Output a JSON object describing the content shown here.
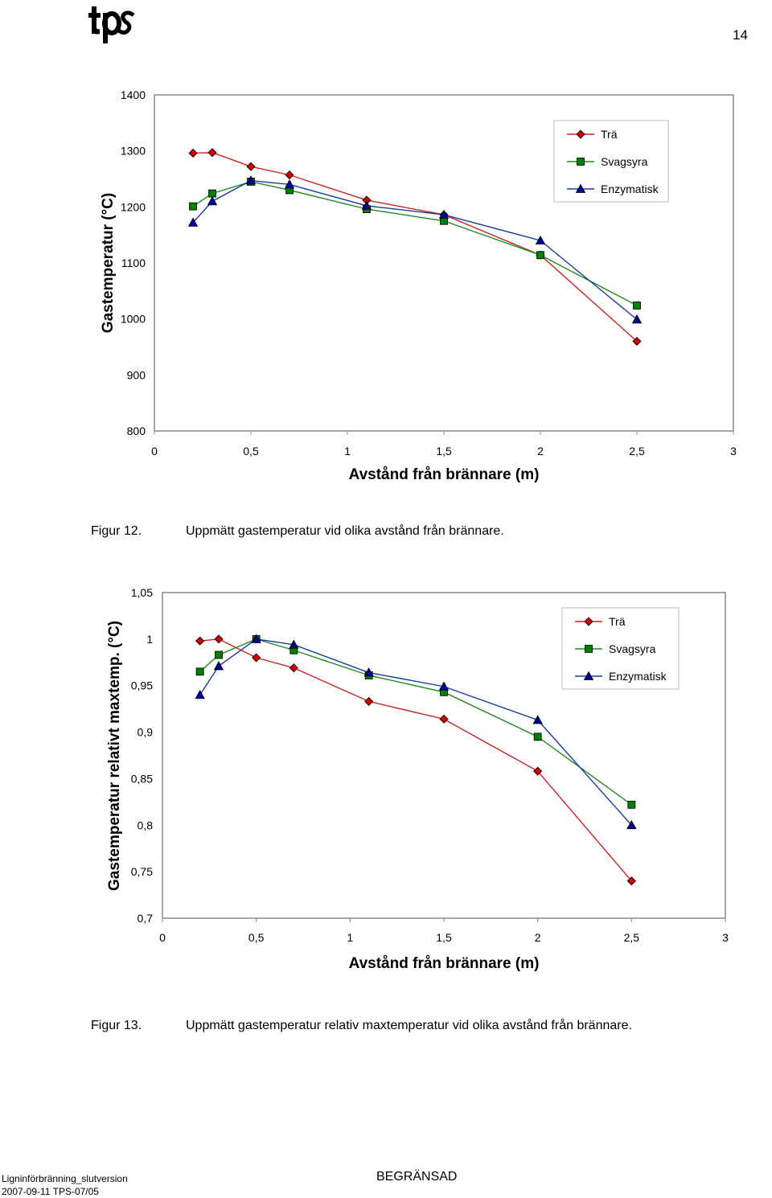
{
  "header": {
    "logo_text": "tps",
    "page_number": "14"
  },
  "figures": [
    {
      "label": "Figur 12.",
      "caption": "Uppmätt gastemperatur vid olika avstånd från brännare."
    },
    {
      "label": "Figur 13.",
      "caption": "Uppmätt gastemperatur relativ maxtemperatur vid olika avstånd från brännare."
    }
  ],
  "footer": {
    "doc_name": "Ligninförbränning_slutversion",
    "doc_ref": "2007-09-11 TPS-07/05",
    "classification": "BEGRÄNSAD"
  },
  "chart_data": [
    {
      "type": "line",
      "xlabel": "Avstånd från brännare (m)",
      "ylabel": "Gastemperatur (°C)",
      "xlim": [
        0,
        3
      ],
      "ylim": [
        800,
        1400
      ],
      "xticks": [
        0,
        0.5,
        1,
        1.5,
        2,
        2.5,
        3
      ],
      "xtick_labels": [
        "0",
        "0,5",
        "1",
        "1,5",
        "2",
        "2,5",
        "3"
      ],
      "yticks": [
        800,
        900,
        1000,
        1100,
        1200,
        1300,
        1400
      ],
      "ytick_labels": [
        "800",
        "900",
        "1000",
        "1100",
        "1200",
        "1300",
        "1400"
      ],
      "grid": false,
      "legend": "top-right",
      "series": [
        {
          "name": "Trä",
          "color": "#cc2222",
          "marker": "diamond",
          "marker_color": "#cc0000",
          "x": [
            0.2,
            0.3,
            0.5,
            0.7,
            1.1,
            1.5,
            2.0,
            2.5
          ],
          "y": [
            1296,
            1297,
            1272,
            1257,
            1212,
            1186,
            1114,
            960
          ]
        },
        {
          "name": "Svagsyra",
          "color": "#228822",
          "marker": "square",
          "marker_color": "#008000",
          "x": [
            0.2,
            0.3,
            0.5,
            0.7,
            1.1,
            1.5,
            2.0,
            2.5
          ],
          "y": [
            1201,
            1224,
            1245,
            1230,
            1196,
            1175,
            1114,
            1024
          ]
        },
        {
          "name": "Enzymatisk",
          "color": "#1a3aa0",
          "marker": "triangle",
          "marker_color": "#000099",
          "x": [
            0.2,
            0.3,
            0.5,
            0.7,
            1.1,
            1.5,
            2.0,
            2.5
          ],
          "y": [
            1172,
            1210,
            1247,
            1240,
            1202,
            1186,
            1140,
            999
          ]
        }
      ]
    },
    {
      "type": "line",
      "xlabel": "Avstånd från brännare (m)",
      "ylabel": "Gastemperatur relativt maxtemp. (°C)",
      "xlim": [
        0,
        3
      ],
      "ylim": [
        0.7,
        1.05
      ],
      "xticks": [
        0,
        0.5,
        1,
        1.5,
        2,
        2.5,
        3
      ],
      "xtick_labels": [
        "0",
        "0,5",
        "1",
        "1,5",
        "2",
        "2,5",
        "3"
      ],
      "yticks": [
        0.7,
        0.75,
        0.8,
        0.85,
        0.9,
        0.95,
        1,
        1.05
      ],
      "ytick_labels": [
        "0,7",
        "0,75",
        "0,8",
        "0,85",
        "0,9",
        "0,95",
        "1",
        "1,05"
      ],
      "grid": false,
      "legend": "top-right",
      "series": [
        {
          "name": "Trä",
          "color": "#cc2222",
          "marker": "diamond",
          "marker_color": "#cc0000",
          "x": [
            0.2,
            0.3,
            0.5,
            0.7,
            1.1,
            1.5,
            2.0,
            2.5
          ],
          "y": [
            0.998,
            1.0,
            0.98,
            0.969,
            0.933,
            0.914,
            0.858,
            0.74
          ]
        },
        {
          "name": "Svagsyra",
          "color": "#228822",
          "marker": "square",
          "marker_color": "#008000",
          "x": [
            0.2,
            0.3,
            0.5,
            0.7,
            1.1,
            1.5,
            2.0,
            2.5
          ],
          "y": [
            0.965,
            0.983,
            1.0,
            0.988,
            0.961,
            0.943,
            0.895,
            0.822
          ]
        },
        {
          "name": "Enzymatisk",
          "color": "#1a3aa0",
          "marker": "triangle",
          "marker_color": "#000099",
          "x": [
            0.2,
            0.3,
            0.5,
            0.7,
            1.1,
            1.5,
            2.0,
            2.5
          ],
          "y": [
            0.94,
            0.971,
            1.0,
            0.994,
            0.964,
            0.949,
            0.913,
            0.8
          ]
        }
      ]
    }
  ]
}
